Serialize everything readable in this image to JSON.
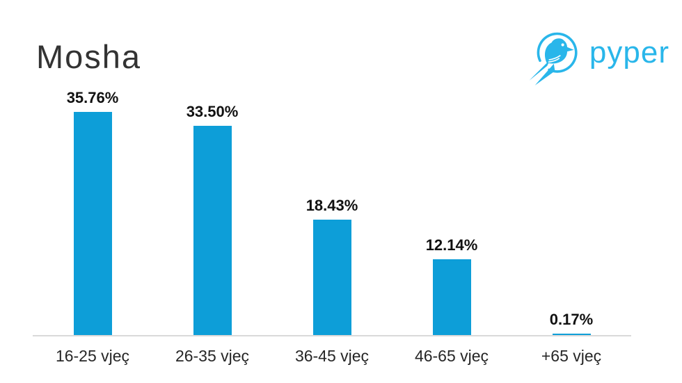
{
  "logo": {
    "text": "pyper",
    "color": "#29b6ea"
  },
  "chart_data": {
    "type": "bar",
    "title": "Mosha",
    "categories": [
      "16-25 vjeç",
      "26-35 vjeç",
      "36-45 vjeç",
      "46-65 vjeç",
      "+65 vjeç"
    ],
    "values": [
      35.76,
      33.5,
      18.43,
      12.14,
      0.17
    ],
    "value_labels": [
      "35.76%",
      "33.50%",
      "18.43%",
      "12.14%",
      "0.17%"
    ],
    "bar_color": "#0d9ed8",
    "axis_line_color": "#d9d9d9",
    "xlabel": "",
    "ylabel": "",
    "ylim": [
      0,
      40
    ],
    "grid": false,
    "legend": false
  }
}
